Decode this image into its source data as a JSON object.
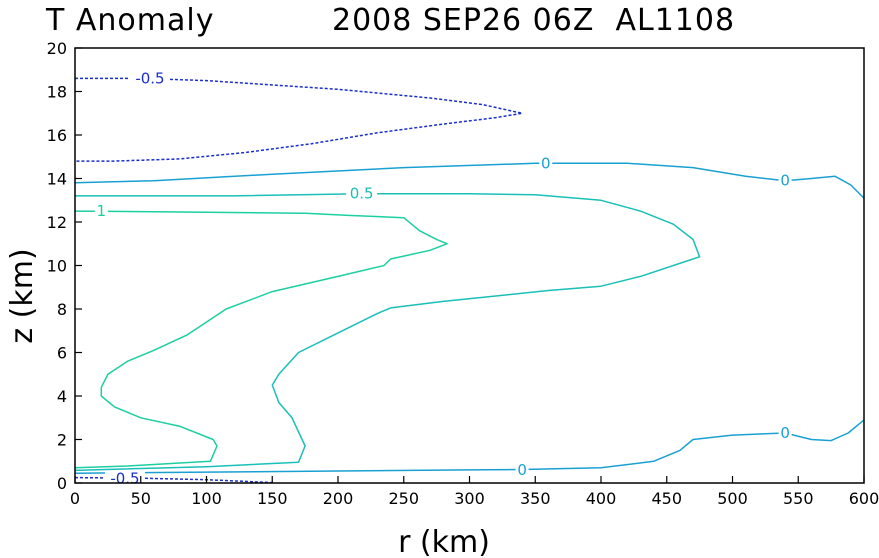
{
  "title": {
    "left": "T Anomaly",
    "right": "2008 SEP26 06Z  AL1108"
  },
  "chart_data": {
    "type": "contour",
    "title": "T Anomaly 2008 SEP26 06Z AL1108",
    "xlabel": "r (km)",
    "ylabel": "z (km)",
    "xlim": [
      0,
      600
    ],
    "ylim": [
      0,
      20
    ],
    "xticks": [
      0,
      50,
      100,
      150,
      200,
      250,
      300,
      350,
      400,
      450,
      500,
      550,
      600
    ],
    "yticks": [
      0,
      2,
      4,
      6,
      8,
      10,
      12,
      14,
      16,
      18,
      20
    ],
    "colors": {
      "-0.5": "#1a2ecc",
      "0": "#19a0d2",
      "0.5": "#19bfb8",
      "1": "#1ccfa0"
    },
    "contours": [
      {
        "level": -0.5,
        "label": "-0.5",
        "dashed": true,
        "label_at": [
          57,
          18.6
        ],
        "points": [
          [
            0,
            18.6
          ],
          [
            50,
            18.6
          ],
          [
            100,
            18.5
          ],
          [
            200,
            18.1
          ],
          [
            270,
            17.7
          ],
          [
            310,
            17.4
          ],
          [
            340,
            17.0
          ],
          [
            320,
            16.8
          ],
          [
            280,
            16.5
          ],
          [
            230,
            16.1
          ],
          [
            180,
            15.6
          ],
          [
            130,
            15.2
          ],
          [
            80,
            14.9
          ],
          [
            30,
            14.8
          ],
          [
            0,
            14.8
          ]
        ]
      },
      {
        "level": -0.5,
        "label": "-0.5",
        "dashed": true,
        "label_at": [
          38,
          0.2
        ],
        "points": [
          [
            0,
            0.25
          ],
          [
            50,
            0.22
          ],
          [
            100,
            0.15
          ],
          [
            150,
            0.02
          ]
        ]
      },
      {
        "level": 0,
        "label": "0",
        "dashed": false,
        "label_at": [
          358,
          14.7
        ],
        "label_at_2": [
          540,
          13.9
        ],
        "points": [
          [
            0,
            13.8
          ],
          [
            60,
            13.9
          ],
          [
            150,
            14.2
          ],
          [
            250,
            14.5
          ],
          [
            350,
            14.7
          ],
          [
            420,
            14.7
          ],
          [
            470,
            14.5
          ],
          [
            510,
            14.1
          ],
          [
            540,
            13.9
          ],
          [
            560,
            14.0
          ],
          [
            578,
            14.1
          ],
          [
            590,
            13.7
          ],
          [
            600,
            13.1
          ]
        ]
      },
      {
        "level": 0,
        "label": "0",
        "dashed": false,
        "label_at": [
          340,
          0.6
        ],
        "label_at_2": [
          540,
          2.3
        ],
        "points": [
          [
            0,
            0.45
          ],
          [
            100,
            0.5
          ],
          [
            200,
            0.55
          ],
          [
            300,
            0.6
          ],
          [
            340,
            0.62
          ],
          [
            400,
            0.7
          ],
          [
            440,
            1.0
          ],
          [
            460,
            1.5
          ],
          [
            470,
            2.0
          ],
          [
            500,
            2.2
          ],
          [
            540,
            2.3
          ],
          [
            560,
            2.0
          ],
          [
            575,
            1.95
          ],
          [
            588,
            2.3
          ],
          [
            600,
            2.9
          ]
        ]
      },
      {
        "level": 0.5,
        "label": "0.5",
        "dashed": false,
        "label_at": [
          218,
          13.3
        ],
        "points": [
          [
            0,
            13.2
          ],
          [
            120,
            13.2
          ],
          [
            218,
            13.3
          ],
          [
            300,
            13.3
          ],
          [
            350,
            13.25
          ],
          [
            400,
            13.0
          ],
          [
            430,
            12.5
          ],
          [
            455,
            11.9
          ],
          [
            470,
            11.2
          ],
          [
            475,
            10.4
          ],
          [
            465,
            10.2
          ],
          [
            430,
            9.5
          ],
          [
            400,
            9.05
          ],
          [
            360,
            8.85
          ],
          [
            320,
            8.6
          ],
          [
            280,
            8.35
          ],
          [
            240,
            8.05
          ],
          [
            230,
            7.8
          ],
          [
            200,
            6.9
          ],
          [
            170,
            6.0
          ],
          [
            155,
            5.0
          ],
          [
            150,
            4.5
          ],
          [
            155,
            3.7
          ],
          [
            165,
            3.0
          ],
          [
            175,
            1.7
          ],
          [
            170,
            0.95
          ],
          [
            100,
            0.75
          ],
          [
            0,
            0.58
          ]
        ]
      },
      {
        "level": 1.0,
        "label": "1",
        "dashed": false,
        "label_at": [
          20,
          12.5
        ],
        "points": [
          [
            0,
            12.5
          ],
          [
            100,
            12.45
          ],
          [
            175,
            12.4
          ],
          [
            210,
            12.3
          ],
          [
            250,
            12.2
          ],
          [
            262,
            11.6
          ],
          [
            275,
            11.2
          ],
          [
            283,
            11.0
          ],
          [
            270,
            10.7
          ],
          [
            240,
            10.3
          ],
          [
            235,
            10.0
          ],
          [
            200,
            9.5
          ],
          [
            150,
            8.8
          ],
          [
            115,
            8.0
          ],
          [
            85,
            6.8
          ],
          [
            60,
            6.1
          ],
          [
            40,
            5.6
          ],
          [
            25,
            5.0
          ],
          [
            20,
            4.4
          ],
          [
            20,
            4.0
          ],
          [
            30,
            3.5
          ],
          [
            50,
            3.0
          ],
          [
            80,
            2.6
          ],
          [
            105,
            2.0
          ],
          [
            108,
            1.7
          ],
          [
            103,
            1.0
          ],
          [
            40,
            0.78
          ],
          [
            0,
            0.7
          ]
        ]
      }
    ]
  }
}
